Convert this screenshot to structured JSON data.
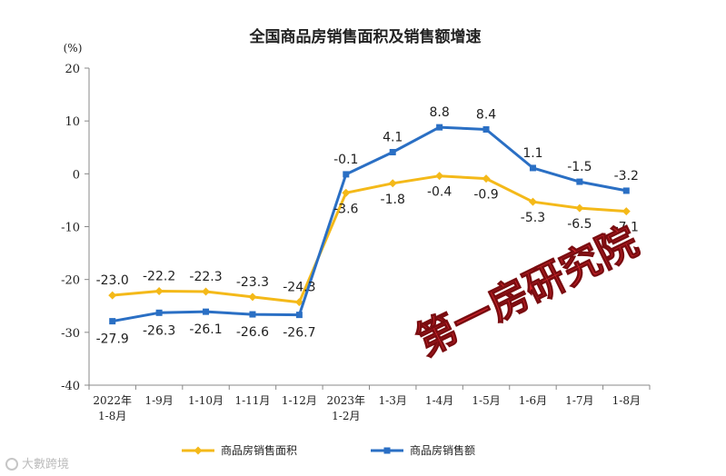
{
  "chart_data": {
    "type": "line",
    "title": "全国商品房销售面积及销售额增速",
    "ylabel": "(%)",
    "ylim": [
      -40,
      20
    ],
    "yticks": [
      20,
      10,
      0,
      -10,
      -20,
      -30,
      -40
    ],
    "categories": [
      [
        "2022年",
        "1-8月"
      ],
      [
        "1-9月"
      ],
      [
        "1-10月"
      ],
      [
        "1-11月"
      ],
      [
        "1-12月"
      ],
      [
        "2023年",
        "1-2月"
      ],
      [
        "1-3月"
      ],
      [
        "1-4月"
      ],
      [
        "1-5月"
      ],
      [
        "1-6月"
      ],
      [
        "1-7月"
      ],
      [
        "1-8月"
      ]
    ],
    "series": [
      {
        "name": "商品房销售面积",
        "color": "#f4b919",
        "marker": "diamond",
        "values": [
          -23.0,
          -22.2,
          -22.3,
          -23.3,
          -24.3,
          -3.6,
          -1.8,
          -0.4,
          -0.9,
          -5.3,
          -6.5,
          -7.1
        ],
        "labels": [
          "-23.0",
          "-22.2",
          "-22.3",
          "-23.3",
          "-24.3",
          "-3.6",
          "-1.8",
          "-0.4",
          "-0.9",
          "-5.3",
          "-6.5",
          "-7.1"
        ]
      },
      {
        "name": "商品房销售额",
        "color": "#2a6fc4",
        "marker": "square",
        "values": [
          -27.9,
          -26.3,
          -26.1,
          -26.6,
          -26.7,
          -0.1,
          4.1,
          8.8,
          8.4,
          1.1,
          -1.5,
          -3.2
        ],
        "labels": [
          "-27.9",
          "-26.3",
          "-26.1",
          "-26.6",
          "-26.7",
          "-0.1",
          "4.1",
          "8.8",
          "8.4",
          "1.1",
          "-1.5",
          "-3.2"
        ]
      }
    ],
    "legend": "bottom"
  },
  "watermark": {
    "text": "第一房研究院",
    "color": "#d9272e"
  },
  "brand": {
    "text": "大數跨境"
  }
}
